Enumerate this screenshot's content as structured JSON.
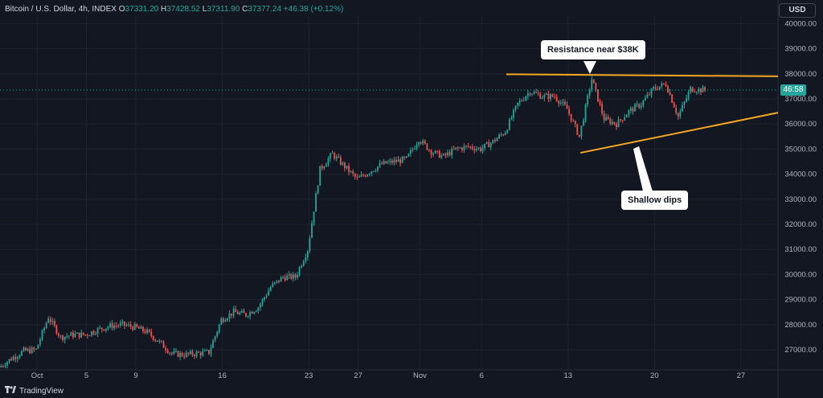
{
  "legend": {
    "symbol": "Bitcoin / U.S. Dollar, 4h, INDEX",
    "open_label": "O",
    "open": "37331.20",
    "high_label": "H",
    "high": "37428.52",
    "low_label": "L",
    "low": "37311.90",
    "close_label": "C",
    "close": "37377.24",
    "change": "+46.38 (+0.12%)"
  },
  "currency_button": "USD",
  "last_price_tag": "46:58",
  "branding": "TradingView",
  "annotations": {
    "resistance": "Resistance near $38K",
    "dips": "Shallow dips"
  },
  "colors": {
    "background": "#131722",
    "up": "#26a69a",
    "down": "#ef5350",
    "trendline": "#f5a623",
    "grid": "#1e222d"
  },
  "chart_data": {
    "type": "candlestick",
    "title": "",
    "xlabel": "",
    "ylabel": "",
    "ylim": [
      26200,
      40300
    ],
    "y_ticks": [
      27000,
      28000,
      29000,
      30000,
      31000,
      32000,
      33000,
      34000,
      35000,
      36000,
      37000,
      38000,
      39000,
      40000
    ],
    "y_tick_labels": [
      "27000.00",
      "28000.00",
      "29000.00",
      "30000.00",
      "31000.00",
      "32000.00",
      "33000.00",
      "34000.00",
      "35000.00",
      "36000.00",
      "37000.00",
      "38000.00",
      "39000.00",
      "40000.00"
    ],
    "x_ticks": [
      {
        "label": "Oct",
        "date": "2023-10-01"
      },
      {
        "label": "5",
        "date": "2023-10-05"
      },
      {
        "label": "9",
        "date": "2023-10-09"
      },
      {
        "label": "16",
        "date": "2023-10-16"
      },
      {
        "label": "23",
        "date": "2023-10-23"
      },
      {
        "label": "27",
        "date": "2023-10-27"
      },
      {
        "label": "Nov",
        "date": "2023-11-01"
      },
      {
        "label": "6",
        "date": "2023-11-06"
      },
      {
        "label": "13",
        "date": "2023-11-13"
      },
      {
        "label": "20",
        "date": "2023-11-20"
      },
      {
        "label": "27",
        "date": "2023-11-27"
      }
    ],
    "x_range": [
      "2023-09-28",
      "2023-11-30"
    ],
    "price_path": [
      [
        "2023-09-28",
        26300
      ],
      [
        "2023-09-29",
        26650
      ],
      [
        "2023-09-30",
        26950
      ],
      [
        "2023-10-01",
        27000
      ],
      [
        "2023-10-02",
        28300
      ],
      [
        "2023-10-03",
        27500
      ],
      [
        "2023-10-04",
        27600
      ],
      [
        "2023-10-05",
        27600
      ],
      [
        "2023-10-06",
        27800
      ],
      [
        "2023-10-07",
        27950
      ],
      [
        "2023-10-08",
        28000
      ],
      [
        "2023-10-09",
        27900
      ],
      [
        "2023-10-10",
        27700
      ],
      [
        "2023-10-11",
        27300
      ],
      [
        "2023-10-12",
        26850
      ],
      [
        "2023-10-13",
        26800
      ],
      [
        "2023-10-14",
        26850
      ],
      [
        "2023-10-15",
        26900
      ],
      [
        "2023-10-16",
        28200
      ],
      [
        "2023-10-17",
        28500
      ],
      [
        "2023-10-18",
        28400
      ],
      [
        "2023-10-19",
        28700
      ],
      [
        "2023-10-20",
        29500
      ],
      [
        "2023-10-21",
        29900
      ],
      [
        "2023-10-22",
        29900
      ],
      [
        "2023-10-23",
        31000
      ],
      [
        "2023-10-24",
        34200
      ],
      [
        "2023-10-25",
        34800
      ],
      [
        "2023-10-26",
        34300
      ],
      [
        "2023-10-27",
        33800
      ],
      [
        "2023-10-28",
        34100
      ],
      [
        "2023-10-29",
        34400
      ],
      [
        "2023-10-30",
        34500
      ],
      [
        "2023-10-31",
        34600
      ],
      [
        "2023-11-01",
        35400
      ],
      [
        "2023-11-02",
        34900
      ],
      [
        "2023-11-03",
        34700
      ],
      [
        "2023-11-04",
        35000
      ],
      [
        "2023-11-05",
        35100
      ],
      [
        "2023-11-06",
        35000
      ],
      [
        "2023-11-07",
        35300
      ],
      [
        "2023-11-08",
        35700
      ],
      [
        "2023-11-09",
        36800
      ],
      [
        "2023-11-10",
        37300
      ],
      [
        "2023-11-11",
        37100
      ],
      [
        "2023-11-12",
        37100
      ],
      [
        "2023-11-13",
        36600
      ],
      [
        "2023-11-14",
        35500
      ],
      [
        "2023-11-15",
        37800
      ],
      [
        "2023-11-16",
        36200
      ],
      [
        "2023-11-17",
        36000
      ],
      [
        "2023-11-18",
        36500
      ],
      [
        "2023-11-19",
        36800
      ],
      [
        "2023-11-20",
        37400
      ],
      [
        "2023-11-21",
        37600
      ],
      [
        "2023-11-22",
        36300
      ],
      [
        "2023-11-23",
        37400
      ],
      [
        "2023-11-24",
        37350
      ]
    ],
    "trendlines": [
      {
        "label": "Resistance near $38K",
        "from": [
          "2023-11-08",
          37980
        ],
        "to": [
          "2023-11-30",
          37900
        ]
      },
      {
        "label": "Shallow dips",
        "from": [
          "2023-11-14",
          34850
        ],
        "to": [
          "2023-11-30",
          36450
        ]
      }
    ]
  }
}
